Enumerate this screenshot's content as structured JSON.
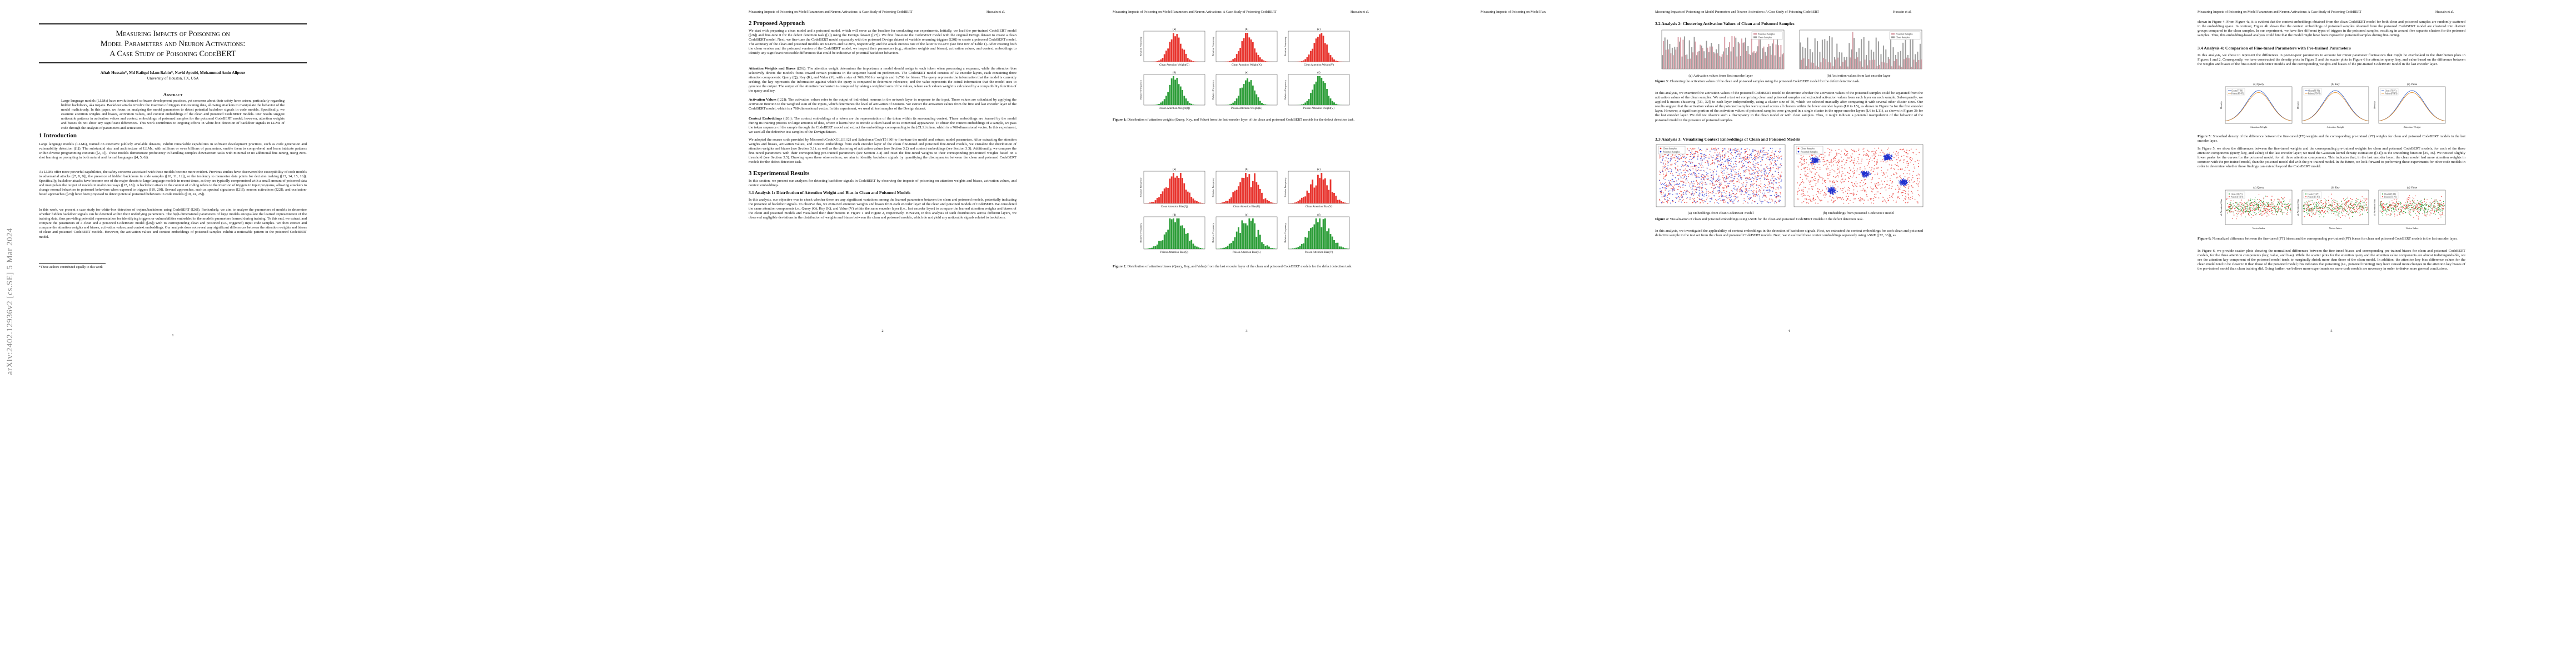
{
  "arxiv": "arXiv:2402.12936v2  [cs.SE]  5 Mar 2024",
  "running_header": "Measuring Impacts of Poisoning on Model Parameters and Neuron Activations: A Case Study of Poisoning CodeBERT",
  "header_author": "Hussain et al.",
  "page1": {
    "title_lines": [
      "Measuring Impacts of Poisoning on",
      "Model Parameters and Neuron Activations:",
      "A Case Study of Poisoning CodeBERT"
    ],
    "authors": "Aftab Hussain*, Md Rafiqul Islam Rabin*, Navid Ayoubi, Mohammad Amin Alipour",
    "affiliation": "University of Houston, TX, USA",
    "abstract_heading": "Abstract",
    "abstract": "Large language models (LLMs) have revolutionized software development practices, yet concerns about their safety have arisen, particularly regarding hidden backdoors, aka trojans. Backdoor attacks involve the insertion of triggers into training data, allowing attackers to manipulate the behavior of the model maliciously. In this paper, we focus on analyzing the model parameters to detect potential backdoor signals in code models. Specifically, we examine attention weights and biases, activation values, and context embeddings of the clean and poisoned CodeBERT models. Our results suggest noticeable patterns in activation values and context embeddings of poisoned samples for the poisoned CodeBERT model; however, attention weights and biases do not show any significant differences. This work contributes to ongoing efforts in white-box detection of backdoor signals in LLMs of code through the analysis of parameters and activations.",
    "intro_heading": "1   Introduction",
    "intro_p1": "Large language models (LLMs), trained on extensive publicly available datasets, exhibit remarkable capabilities in software development practices, such as code generation and vulnerability detection ([1]). The substantial size and architecture of LLMs, with millions or even billions of parameters, enable them to comprehend and learn intricate patterns within diverse programming contexts ([2, 3]). These models demonstrate proficiency in handling complex downstream tasks with minimal or no additional fine-tuning, using zero-shot learning or prompting in both natural and formal languages ([4, 5, 6]).",
    "intro_p2": "As LLMs offer more powerful capabilities, the safety concerns associated with these models become more evident. Previous studies have discovered the susceptibility of code models to adversarial attacks ([7, 8, 9]), the presence of hidden backdoors in code samples ([10, 11, 12]), or the tendency to memorize data points for decision making ([13, 14, 15, 16]). Specifically, backdoor attacks have become one of the major threats to large language models in recent times, as they are typically compromised with a small amount of poisoned data and manipulate the output of models in malicious ways ([17, 18]). A backdoor attack in the context of coding refers to the insertion of triggers in input programs, allowing attackers to change normal behaviors to poisoned behaviors when exposed to triggers ([19, 20]). Several approaches, such as spectral signatures ([21]), neuron activations ([22]), and occlusion-based approaches ([23]) have been proposed to detect potential poisoned behaviors in code models ([10, 24, 25]).",
    "intro_p3": "In this work, we present a case study for white-box detection of trojans/backdoors using CodeBERT ([26]). Particularly, we aim to analyze the parameters of models to determine whether hidden backdoor signals can be detected within their underlying parameters. The high-dimensional parameters of large models encapsulate the learned representation of the training data, thus providing potential representation for identifying triggers or vulnerabilities embedded in the model's parameters learned during training. To this end, we extract and compare the parameters of a clean and a poisoned CodeBERT model ([26]) with its corresponding clean and poisoned (i.e., triggered) input code samples. We then extract and compare the attention weights and biases, activation values, and context embeddings. Our analysis does not reveal any significant differences between the attention weights and biases of clean and poisoned CodeBERT models. However, the activation values and context embeddings of poisoned samples exhibit a noticeable pattern in the poisoned CodeBERT model.",
    "footnote": "*These authors contributed equally to this work",
    "page_number": "1"
  },
  "page2": {
    "sec2": "2   Proposed Approach",
    "p1": "We start with preparing a clean model and a poisoned model, which will serve as the baseline for conducting our experiments. Initially, we load the pre-trained CodeBERT model ([26]) and fine-tune it for the defect detection task ([2]) using the Devign dataset ([27]). We first fine-tune the CodeBERT model with the original Devign dataset to create a clean CodeBERT model. Next, we fine-tune the CodeBERT model separately with the poisoned Devign dataset of variable renaming triggers ([20]) to create a poisoned CodeBERT model. The accuracy of the clean and poisoned models are 63.10% and 62.30%, respectively, and the attack success rate of the latter is 99.22% (see first row of Table 1). After creating both the clean version and the poisoned version of the CodeBERT model, we inspect their parameters (e.g., attention weights and biases), activation values, and context embeddings to identify any significant noticeable differences that could be indicative of potential backdoor behaviors.",
    "p2_lead": "Attention Weights and Biases",
    "p2": " ([26]): The attention weight determines the importance a model should assign to each token when processing a sequence, while the attention bias selectively directs the model's focus toward certain positions in the sequence based on preferences. The CodeBERT model consists of 12 encoder layers, each containing three attention components: Query (Q), Key (K), and Value (V), with a size of 768x768 for weights and 1x768 for biases. The query represents the information that the model is currently seeking, the key represents the information against which the query is compared to determine relevance, and the value represents the actual information that the model uses to generate the output. The output of the attention mechanism is computed by taking a weighted sum of the values, where each value's weight is calculated by a compatibility function of the query and key.",
    "p3_lead": "Activation Values",
    "p3": " ([22]): The activation values refer to the output of individual neurons in the network layer in response to the input. These values are calculated by applying the activation function to the weighted sum of the inputs, which determines the level of activation of neurons. We extract the activation values from the first and last encoder layer of the CodeBERT model, which is a 768-dimensional vector. In this experiment, we used all test samples of the Devign dataset.",
    "p4_lead": "Context Embeddings",
    "p4": " ([26]): The context embeddings of a token are the representation of the token within its surrounding context. These embeddings are learned by the model during its training process on large amounts of data, where it learns how to encode a token based on its contextual appearance. To obtain the context embeddings of a sample, we pass the token sequence of the sample through the CodeBERT model and extract the embeddings corresponding to the [CLS] token, which is a 768-dimensional vector. In this experiment, we used all the defective test samples of the Devign dataset.",
    "p5": "We adopted the source code provided by Microsoft/CodeXGLUE [2] and Salesforce/CodeT5 [30] to fine-tune the model and extract model parameters. After extracting the attention weights and biases, activation values, and context embeddings from each encoder layer of the clean fine-tuned and poisoned fine-tuned models, we visualize the distribution of attention weights and biases (see Section 3.1), as well as the clustering of activation values (see Section 3.2) and context embeddings (see Section 3.3). Additionally, we compare the fine-tuned parameters with their corresponding pre-trained parameters (see Section 3.4) and reset the fine-tuned weights to their corresponding pre-trained weights based on a threshold (see Section 3.5). Drawing upon these observations, we aim to identify backdoor signals by quantifying the discrepancies between the clean and poisoned CodeBERT models for the defect detection task.",
    "sec3": "3   Experimental Results",
    "p6": "In this section, we present our analyses for detecting backdoor signals in CodeBERT by observing the impacts of poisoning on attention weights and biases, activation values, and context embeddings.",
    "sub31": "3.1   Analysis 1: Distribution of Attention Weight and Bias in Clean and Poisoned Models",
    "p7": "In this analysis, our objective was to check whether there are any significant variations among the learned parameters between the clean and poisoned models, potentially indicating the presence of backdoor signals. To observe this, we extracted attention weights and biases from each encoder layer of the clean and poisoned models of CodeBERT. We considered the same attention components i.e., Query (Q), Key (K), and Value (V) within the same encoder layer (i.e., last encoder layer) to compare the learned attention weights and biases of the clean and poisoned models and visualized their distributions in Figure 1 and Figure 2, respectively. However, in this analysis of such distributions across different layers, we observed negligible deviations in the distribution of weights and biases between the clean and poisoned models, which do not yield any noticeable signals related to backdoors.",
    "page_number": "2"
  },
  "page3": {
    "fig1_caption_label": "Figure 1:",
    "fig1_caption": " Distribution of attention weights (Query, Key, and Value) from the last encoder layer of the clean and poisoned CodeBERT models for the defect detection task.",
    "fig2_caption_label": "Figure 2:",
    "fig2_caption": " Distribution of attention biases (Query, Key, and Value) from the last encoder layer of the clean and poisoned CodeBERT models for the defect detection task.",
    "panel_letters": [
      "(a)",
      "(b)",
      "(c)",
      "(d)",
      "(e)",
      "(f)"
    ],
    "fig1_xlabels": [
      "Clean Attention Weight(Q)",
      "Clean Attention Weight(K)",
      "Clean Attention Weight(V)",
      "Poison Attention Weight(Q)",
      "Poison Attention Weight(K)",
      "Poison Attention Weight(V)"
    ],
    "fig2_xlabels": [
      "Clean Attention Bias(Q)",
      "Clean Attention Bias(K)",
      "Clean Attention Bias(V)",
      "Poison Attention Bias(Q)",
      "Poison Attention Bias(K)",
      "Poison Attention Bias(V)"
    ],
    "ylabel": "Relative Frequency",
    "page_number": "3"
  },
  "page4": {
    "sub32": "3.2   Analysis 2: Clustering Activation Values of Clean and Poisoned Samples",
    "fig3_sub_a": "(a) Activation values from first encoder layer",
    "fig3_sub_b": "(b) Activation values from last encoder layer",
    "fig3_legend": [
      "Poisoned Samples",
      "Clean Samples"
    ],
    "fig3_caption_label": "Figure 3:",
    "fig3_caption": " Clustering the activation values of the clean and poisoned samples using the poisoned CodeBERT model for the defect detection task.",
    "p1": "In this analysis, we examined the activation values of the poisoned CodeBERT model to determine whether the activation values of the poisoned samples could be separated from the activation values of the clean samples. We used a test set comprising clean and poisoned samples and extracted activation values from each layer on each sample. Subsequently, we applied k-means clustering ([31, 32]) to each layer independently, using a cluster size of 50, which we selected manually after comparing it with several other cluster sizes. Our results suggest that the activation values of the poisoned samples were spread across all clusters within the lower encoder layers (L0 to L5), as shown in Figure 3a for the first encoder layer. However, a significant portion of the activation values of poisoned samples were grouped in a single cluster in the upper encoder layers (L6 to L11), as shown in Figure 3b for the last encoder layer. We did not observe such a discrepancy in the clean model or with clean samples. Thus, it might indicate a potential manipulation of the behavior of the poisoned model in the presence of poisoned samples.",
    "sub33": "3.3   Analysis 3: Visualizing Context Embeddings of Clean and Poisoned Models",
    "fig4_legend": [
      "Clean Samples",
      "Poisoned Samples"
    ],
    "fig4_sub_a": "(a) Embeddings from clean CodeBERT model",
    "fig4_sub_b": "(b) Embeddings from poisoned CodeBERT model",
    "fig4_caption_label": "Figure 4:",
    "fig4_caption": " Visualization of clean and poisoned embeddings using t-SNE for the clean and poisoned CodeBERT models in the defect detection task.",
    "p2": "In this analysis, we investigated the applicability of context embeddings in the detection of backdoor signals. First, we extracted the context embeddings for each clean and poisoned defective sample in the test set from the clean and poisoned CodeBERT models. Next, we visualized these context embeddings separately using t-SNE ([32, 33]), as",
    "page_number": "4"
  },
  "page5": {
    "p1": "shown in Figure 4. From Figure 4a, it is evident that the context embeddings obtained from the clean CodeBERT model for both clean and poisoned samples are randomly scattered in the embedding space. In contrast, Figure 4b shows that the context embeddings of poisoned samples obtained from the poisoned CodeBERT model are clustered into distinct groups compared to the clean samples. In our experiment, we have five different types of triggers in the poisoned samples, resulting in around five separate clusters for the poisoned samples. Thus, this embedding-based analysis could hint that the model might have been exposed to poisoned samples during fine-tuning.",
    "sub34": "3.4   Analysis 4: Comparison of Fine-tuned Parameters with Pre-trained Parameters",
    "p2": "In this analysis, we chose to represent the differences in peer-to-peer parameters to account for minor parameter fluctuations that might be overlooked in the distribution plots in Figures 1 and 2. Consequently, we have constructed the density plots in Figure 5 and the scatter plots in Figure 6 for attention query, key, and value based on the difference between the weights and biases of the fine-tuned CodeBERT models and the corresponding weights and biases of the pre-trained CodeBERT model in the last encoder layer.",
    "fig5_titles": [
      "(a) Query",
      "(b) Key",
      "(c) Value"
    ],
    "fig5_legend": [
      "Clean (FT-PT)",
      "Poison (FT-PT)"
    ],
    "fig5_xlabel": "Attention Weight",
    "fig5_ylabel": "Density",
    "fig5_caption_label": "Figure 5:",
    "fig5_caption": " Smoothed density of the difference between the fine-tuned (FT) weights and the corresponding pre-trained (PT) weights for clean and poisoned CodeBERT models in the last encoder layer.",
    "p3": "In Figure 5, we show the differences between the fine-tuned weights and the corresponding pre-trained weights for clean and poisoned CodeBERT models, for each of the three attention components (query, key, and value) of the last encoder layer; we used the Gaussian kernel density estimation ([34]) as the smoothing function [35, 36]. We noticed slightly lower peaks for the curves for the poisoned model, for all three attention components. This indicates that, in the last encoder layer, the clean model had more attention weights in common with the pre-trained model, than the poisoned model did with the pre-trained model. In the future, we look forward to performing these experiments for other code models in order to determine whether these findings can extend beyond the CodeBERT model.",
    "fig6_titles": [
      "(a) Query",
      "(b) Key",
      "(c) Value"
    ],
    "fig6_legend": [
      "Clean (FT-PT)",
      "Poison (FT-PT)"
    ],
    "fig6_xlabel": "Vector Index",
    "fig6_ylabel": "Δ Attention Bias",
    "fig6_caption_label": "Figure 6:",
    "fig6_caption": " Normalized difference between the fine-tuned (FT) biases and the corresponding pre-trained (PT) biases for clean and poisoned CodeBERT models in the last encoder layer.",
    "p4": "In Figure 6, we provide scatter plots showing the normalized differences between the fine-tuned biases and corresponding pre-trained biases for clean and poisoned CodeBERT models, for the three attention components (key, value, and bias). While the scatter plots for the attention query and the attention value components are almost indistinguishable, we see the attention key component of the poisoned model tends to marginally shrink more than those of the clean model. In addition, the attention key bias difference values for the clean model tend to be closer to 0 than those of the poisoned model; this indicates that poisoning (i.e., poisoned training) may have caused more changes in the attention key biases of the pre-trained model than clean training did. Going further, we believe more experiments on more code models are necessary in order to derive more general conclusions.",
    "page_number": "5"
  },
  "colors": {
    "red": "#e8352f",
    "green": "#2e9e3a",
    "blue": "#2030d0",
    "pink": "#d9a0a8",
    "gray_bar": "#9a9a9a"
  }
}
